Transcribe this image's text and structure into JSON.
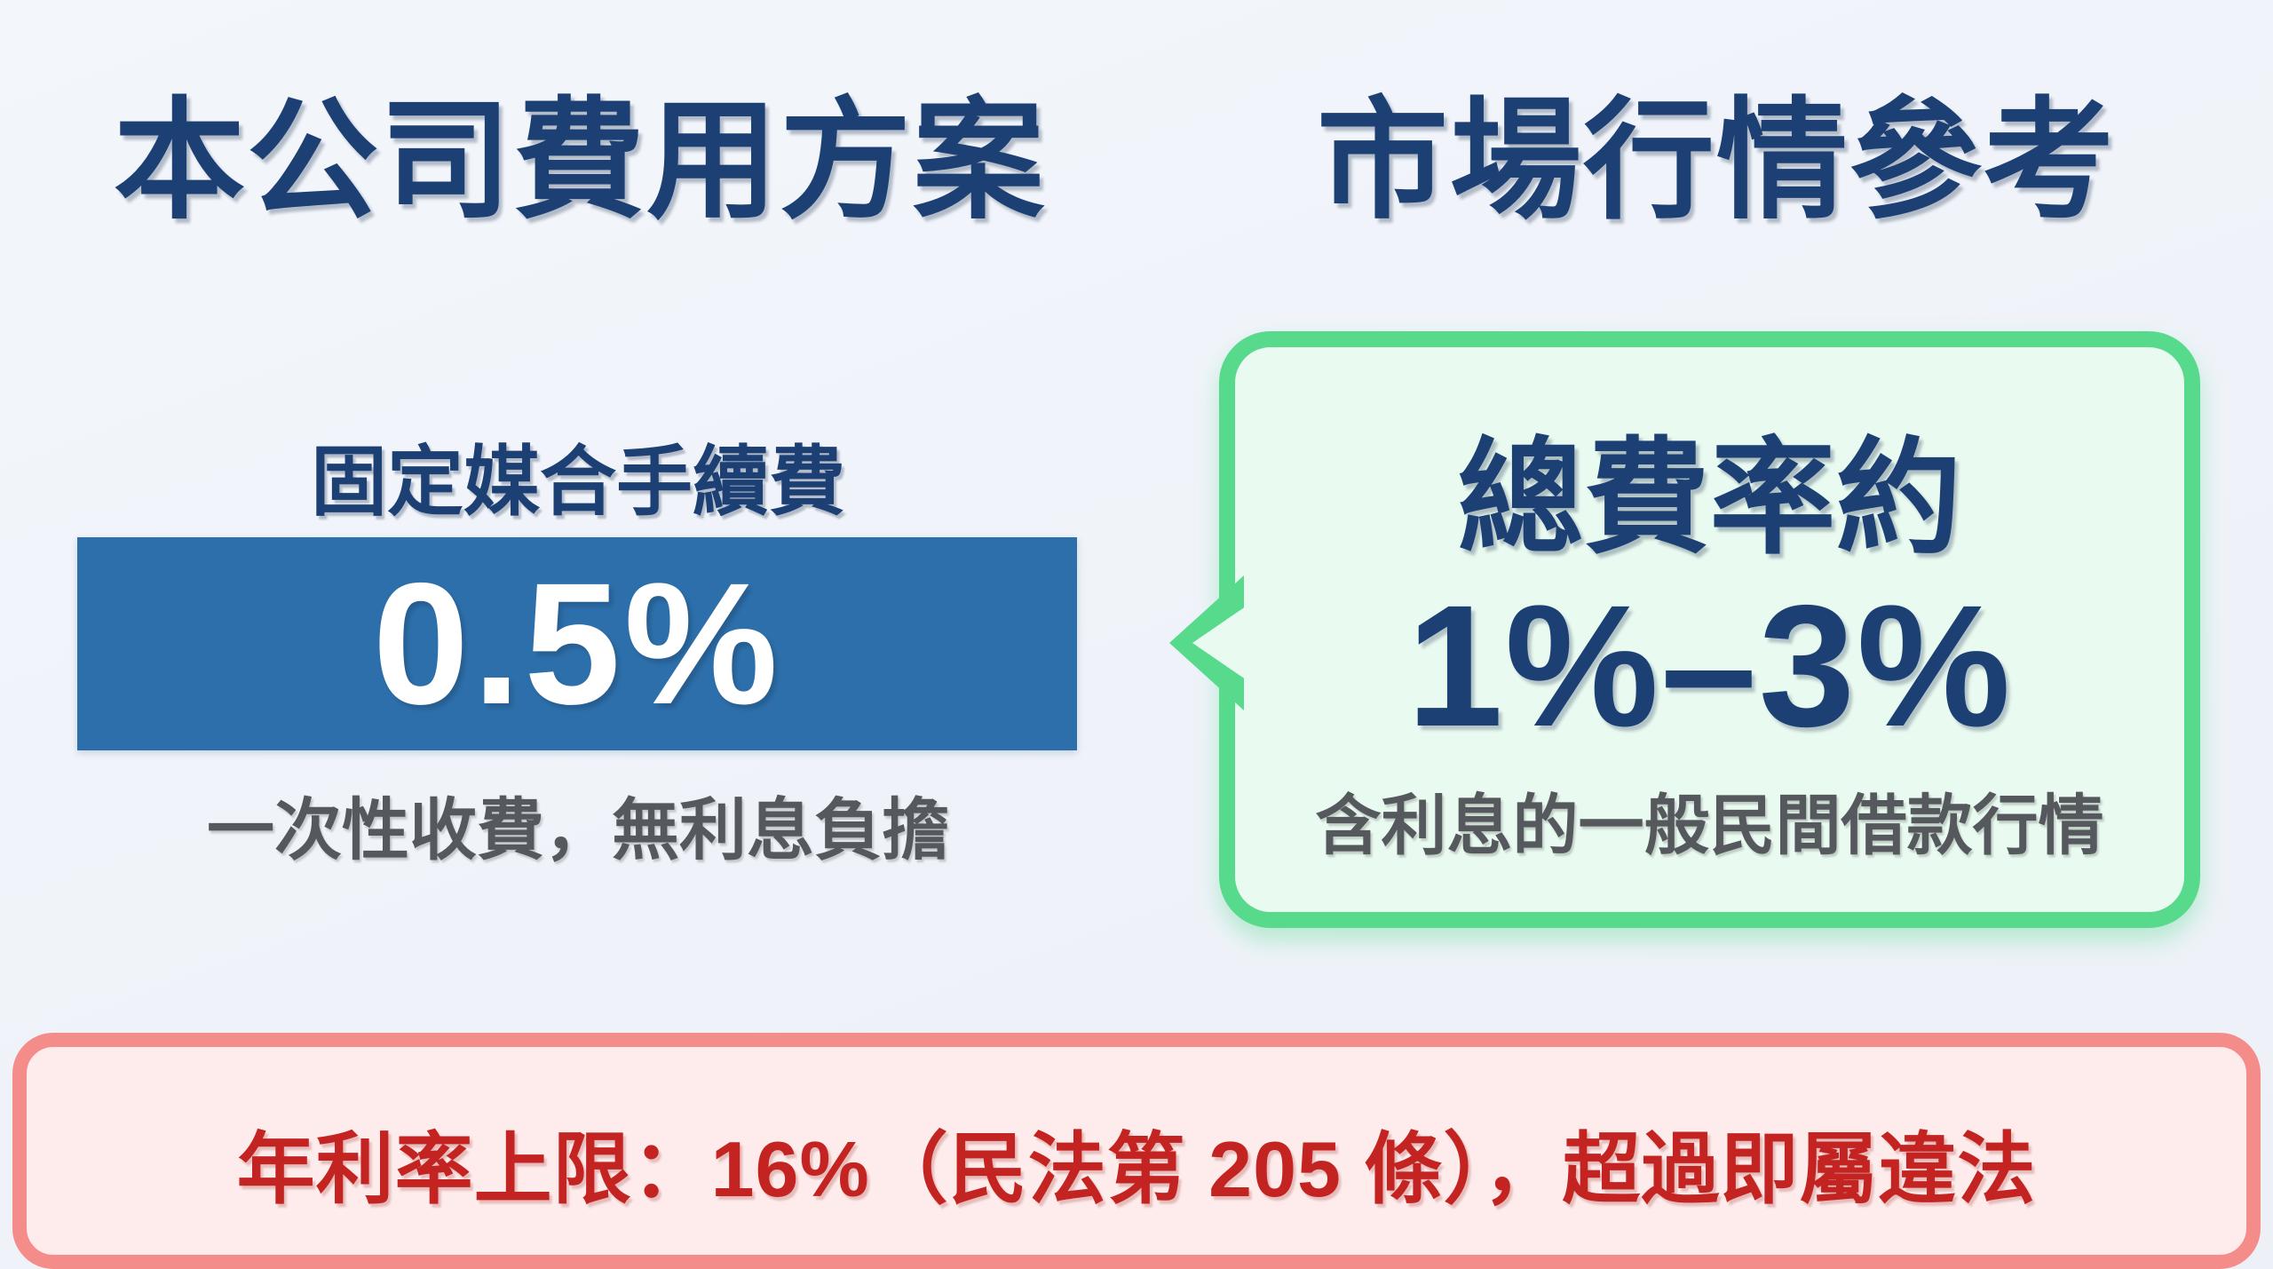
{
  "colors": {
    "background": "#eff3f9",
    "navy_text": "#1c3f74",
    "fee_bar_blue": "#2d6fab",
    "fee_value_white": "#ffffff",
    "note_gray": "#55585c",
    "bubble_border_green": "#58da8d",
    "bubble_fill_mint": "#e9faf0",
    "banner_border_salmon": "#f48c8a",
    "banner_fill_pink": "#fdeceb",
    "warning_red": "#c32421"
  },
  "left_panel": {
    "title": "本公司費用方案",
    "fee_label": "固定媒合手續費",
    "fee_value": "0.5%",
    "fee_note": "一次性收費，無利息負擔"
  },
  "right_panel": {
    "title": "市場行情參考",
    "bubble_heading": "總費率約",
    "bubble_value": "1%–3%",
    "bubble_note": "含利息的一般民間借款行情"
  },
  "footer": {
    "warning": "年利率上限：16%（民法第 205 條），超過即屬違法"
  }
}
